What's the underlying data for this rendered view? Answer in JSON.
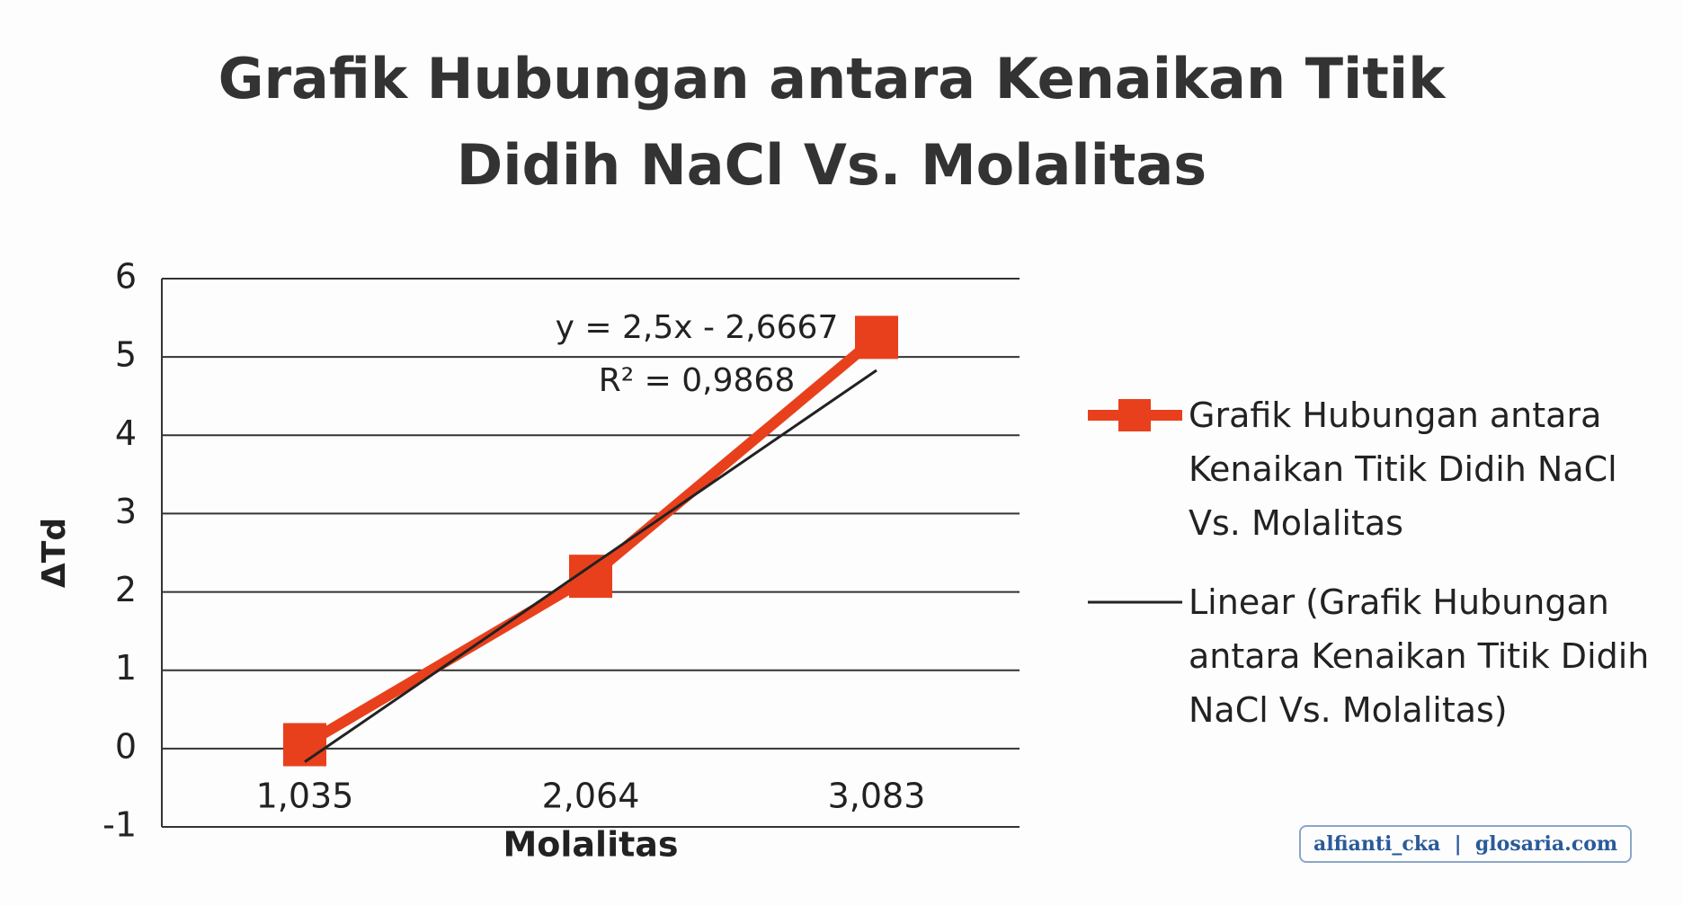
{
  "chart_data": {
    "type": "line",
    "title": "Grafik Hubungan antara Kenaikan Titik Didih NaCl Vs. Molalitas",
    "x_label": "Molalitas",
    "y_label": "ΔTd",
    "categories": [
      "1,035",
      "2,064",
      "3,083"
    ],
    "series": [
      {
        "name": "Grafik Hubungan antara Kenaikan Titik Didih NaCl Vs. Molalitas",
        "color": "#e8401c",
        "marker": "square",
        "values": [
          0.05,
          2.2,
          5.25
        ]
      },
      {
        "name": "Linear (Grafik Hubungan antara Kenaikan Titik Didih NaCl Vs. Molalitas)",
        "color": "#222222",
        "values": [
          -0.17,
          2.33,
          4.83
        ]
      }
    ],
    "annotations": [
      "y = 2,5x - 2,6667",
      "R² = 0,9868"
    ],
    "ylim": [
      -1,
      6
    ],
    "yticks": [
      -1,
      0,
      1,
      2,
      3,
      4,
      5,
      6
    ],
    "grid": true,
    "legend": "right",
    "watermark": "alfianti_cka  |  glosaria.com"
  }
}
